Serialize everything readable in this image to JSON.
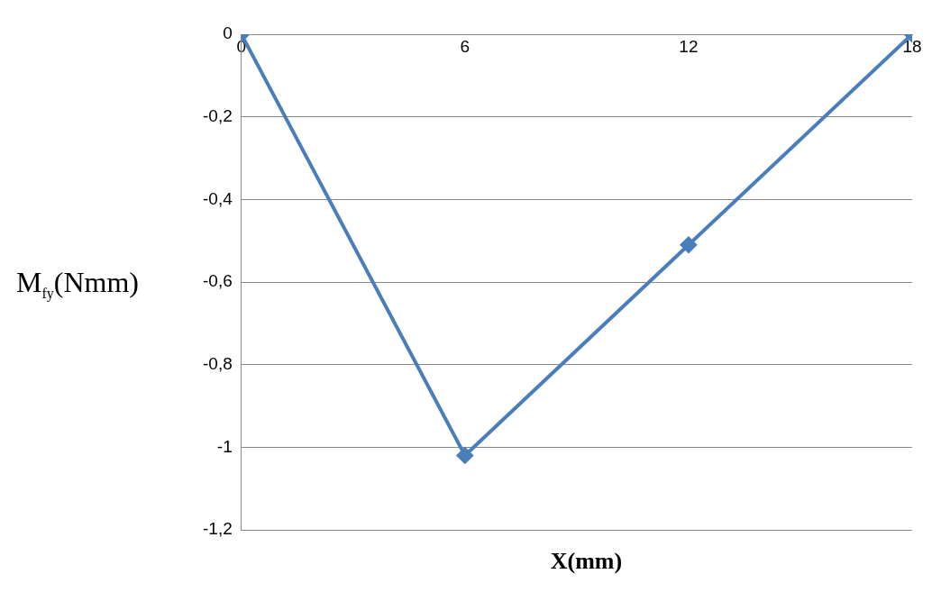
{
  "chart_data": {
    "type": "line",
    "xlabel": "X(mm)",
    "ylabel": "M$_{fy}$(Nmm)",
    "x": [
      0,
      6,
      12,
      18
    ],
    "series": [
      {
        "color": "#4a7ebb",
        "values": [
          0,
          -1.02,
          -0.51,
          0
        ]
      }
    ],
    "xlim": [
      0,
      18
    ],
    "xticks": [
      0,
      6,
      12,
      18
    ],
    "ylim": [
      -1.2,
      0
    ],
    "yticks": [
      {
        "value": -1.2,
        "label": "-1,2"
      },
      {
        "value": -1,
        "label": "-1"
      },
      {
        "value": -0.8,
        "label": "-0,8"
      },
      {
        "value": -0.6,
        "label": "-0,6"
      },
      {
        "value": -0.4,
        "label": "-0,4"
      },
      {
        "value": -0.2,
        "label": "-0,2"
      },
      0
    ],
    "grid": "y",
    "legend": false,
    "marker": "diamond",
    "line_style": "solid"
  }
}
